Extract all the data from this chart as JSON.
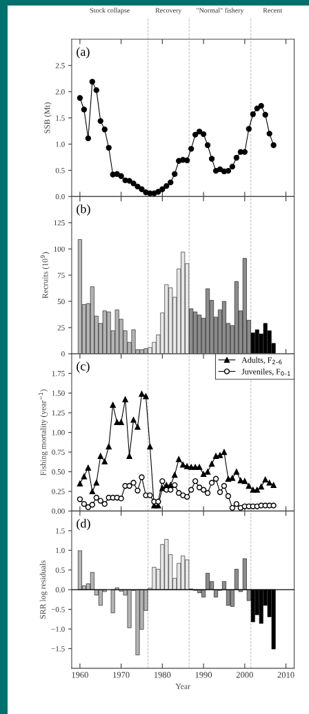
{
  "chart_data": [
    {
      "type": "line",
      "ylabel": "SSB (Mt)",
      "annotations": [
        "(a)",
        "Stock collapse",
        "Recovery",
        "\"Normal\" fishery",
        "Recent"
      ],
      "x": [
        1960,
        1961,
        1962,
        1963,
        1964,
        1965,
        1966,
        1967,
        1968,
        1969,
        1970,
        1971,
        1972,
        1973,
        1974,
        1975,
        1976,
        1977,
        1978,
        1979,
        1980,
        1981,
        1982,
        1983,
        1984,
        1985,
        1986,
        1987,
        1988,
        1989,
        1990,
        1991,
        1992,
        1993,
        1994,
        1995,
        1996,
        1997,
        1998,
        1999,
        2000,
        2001,
        2002,
        2003,
        2004,
        2005,
        2006,
        2007
      ],
      "series": [
        {
          "color": "#000000",
          "values": [
            1.88,
            1.66,
            1.11,
            2.19,
            2.03,
            1.44,
            1.28,
            0.93,
            0.42,
            0.43,
            0.39,
            0.31,
            0.3,
            0.25,
            0.19,
            0.14,
            0.08,
            0.06,
            0.06,
            0.09,
            0.14,
            0.2,
            0.27,
            0.43,
            0.68,
            0.7,
            0.69,
            0.91,
            1.18,
            1.24,
            1.19,
            0.98,
            0.72,
            0.49,
            0.52,
            0.48,
            0.49,
            0.57,
            0.74,
            0.85,
            0.85,
            1.29,
            1.57,
            1.68,
            1.73,
            1.56,
            1.2,
            0.98
          ]
        }
      ],
      "marker": "circle",
      "line_style": "solid",
      "xlim": [
        1958,
        2012
      ],
      "xticks": [
        1960,
        1970,
        1980,
        1990,
        2000,
        2010
      ],
      "ylim": [
        0,
        3.0
      ],
      "yticks": [
        {
          "value": 0,
          "label": "0.0"
        },
        {
          "value": 0.5,
          "label": "0.5"
        },
        {
          "value": 1.0,
          "label": "1.0"
        },
        {
          "value": 1.5,
          "label": "1.5"
        },
        {
          "value": 2.0,
          "label": "2.0"
        },
        {
          "value": 2.5,
          "label": "2.5"
        }
      ],
      "tick_labels": "y",
      "ref_lines": [
        {
          "axis": "x",
          "value": 1976.5,
          "color": "#bbbbbb",
          "line_style": "dashed"
        },
        {
          "axis": "x",
          "value": 1986.5,
          "color": "#bbbbbb",
          "line_style": "dashed"
        },
        {
          "axis": "x",
          "value": 2001.5,
          "color": "#bbbbbb",
          "line_style": "dashed"
        }
      ]
    },
    {
      "type": "bar",
      "ylabel": "Recruits (10$^{9}$)",
      "annotations": [
        "(b)"
      ],
      "x": [
        1960,
        1961,
        1962,
        1963,
        1964,
        1965,
        1966,
        1967,
        1968,
        1969,
        1970,
        1971,
        1972,
        1973,
        1974,
        1975,
        1976,
        1977,
        1978,
        1979,
        1980,
        1981,
        1982,
        1983,
        1984,
        1985,
        1986,
        1987,
        1988,
        1989,
        1990,
        1991,
        1992,
        1993,
        1994,
        1995,
        1996,
        1997,
        1998,
        1999,
        2000,
        2001,
        2002,
        2003,
        2004,
        2005,
        2006,
        2007
      ],
      "values": [
        109,
        47,
        48,
        64,
        36,
        29,
        41,
        40,
        22,
        42,
        33,
        22,
        11,
        23,
        4,
        4,
        5,
        6,
        11,
        18,
        39,
        66,
        63,
        54,
        81,
        97,
        86,
        43,
        40,
        37,
        34,
        62,
        51,
        35,
        42,
        50,
        29,
        27,
        69,
        41,
        91,
        32,
        20,
        23,
        19,
        29,
        22,
        10
      ],
      "colors": [
        "#b4b4b4",
        "#b4b4b4",
        "#b4b4b4",
        "#b4b4b4",
        "#b4b4b4",
        "#b4b4b4",
        "#b4b4b4",
        "#b4b4b4",
        "#b4b4b4",
        "#b4b4b4",
        "#b4b4b4",
        "#b4b4b4",
        "#b4b4b4",
        "#b4b4b4",
        "#b4b4b4",
        "#b4b4b4",
        "#b4b4b4",
        "#e6e6e6",
        "#e6e6e6",
        "#e6e6e6",
        "#e6e6e6",
        "#e6e6e6",
        "#e6e6e6",
        "#e6e6e6",
        "#e6e6e6",
        "#e6e6e6",
        "#e6e6e6",
        "#8c8c8c",
        "#8c8c8c",
        "#8c8c8c",
        "#8c8c8c",
        "#8c8c8c",
        "#8c8c8c",
        "#8c8c8c",
        "#8c8c8c",
        "#8c8c8c",
        "#8c8c8c",
        "#8c8c8c",
        "#8c8c8c",
        "#8c8c8c",
        "#8c8c8c",
        "#8c8c8c",
        "#000000",
        "#000000",
        "#000000",
        "#000000",
        "#000000",
        "#000000"
      ],
      "xlim": [
        1958,
        2012
      ],
      "xticks": [
        1960,
        1970,
        1980,
        1990,
        2000,
        2010
      ],
      "ylim": [
        0,
        150
      ],
      "yticks": [
        0,
        25,
        50,
        75,
        100,
        125
      ],
      "tick_labels": "y",
      "ref_lines": [
        {
          "axis": "x",
          "value": 1976.5,
          "color": "#bbbbbb",
          "line_style": "dashed"
        },
        {
          "axis": "x",
          "value": 1986.5,
          "color": "#bbbbbb",
          "line_style": "dashed"
        },
        {
          "axis": "x",
          "value": 2001.5,
          "color": "#bbbbbb",
          "line_style": "dashed"
        }
      ]
    },
    {
      "type": "line",
      "ylabel": "Fishing mortality (year$^{−1}$)",
      "annotations": [
        "(c)"
      ],
      "x": [
        1960,
        1961,
        1962,
        1963,
        1964,
        1965,
        1966,
        1967,
        1968,
        1969,
        1970,
        1971,
        1972,
        1973,
        1974,
        1975,
        1976,
        1977,
        1978,
        1979,
        1980,
        1981,
        1982,
        1983,
        1984,
        1985,
        1986,
        1987,
        1988,
        1989,
        1990,
        1991,
        1992,
        1993,
        1994,
        1995,
        1996,
        1997,
        1998,
        1999,
        2000,
        2001,
        2002,
        2003,
        2004,
        2005,
        2006,
        2007
      ],
      "series": [
        {
          "name": "Adults, F$_{2–6}$",
          "color": "#000000",
          "marker": "triangle",
          "values": [
            0.35,
            0.44,
            0.55,
            0.25,
            0.36,
            0.7,
            0.63,
            0.82,
            1.35,
            1.13,
            1.13,
            1.42,
            0.7,
            1.16,
            1.07,
            1.49,
            1.46,
            0.82,
            0.07,
            0.07,
            0.29,
            0.33,
            0.33,
            0.46,
            0.66,
            0.59,
            0.57,
            0.56,
            0.56,
            0.56,
            0.47,
            0.5,
            0.6,
            0.7,
            0.71,
            0.75,
            0.41,
            0.42,
            0.5,
            0.39,
            0.38,
            0.32,
            0.27,
            0.27,
            0.31,
            0.4,
            0.36,
            0.33
          ]
        },
        {
          "name": "Juveniles, F$_{0–1}$",
          "color": "#000000",
          "marker": "circle",
          "values": [
            0.15,
            0.09,
            0.05,
            0.08,
            0.17,
            0.13,
            0.09,
            0.17,
            0.17,
            0.17,
            0.16,
            0.32,
            0.32,
            0.36,
            0.26,
            0.43,
            0.2,
            0.2,
            0.12,
            0.12,
            0.38,
            0.27,
            0.27,
            0.33,
            0.23,
            0.2,
            0.18,
            0.27,
            0.38,
            0.3,
            0.27,
            0.23,
            0.36,
            0.41,
            0.24,
            0.32,
            0.19,
            0.04,
            0.09,
            0.04,
            0.06,
            0.06,
            0.06,
            0.06,
            0.07,
            0.07,
            0.07,
            0.07
          ]
        }
      ],
      "line_style": "solid",
      "legend": "top right",
      "xlim": [
        1958,
        2012
      ],
      "xticks": [
        1960,
        1970,
        1980,
        1990,
        2000,
        2010
      ],
      "ylim": [
        0,
        2.0
      ],
      "yticks": [
        {
          "value": 0,
          "label": "0.00"
        },
        {
          "value": 0.25,
          "label": "0.25"
        },
        {
          "value": 0.5,
          "label": "0.50"
        },
        {
          "value": 0.75,
          "label": "0.75"
        },
        {
          "value": 1.0,
          "label": "1.00"
        },
        {
          "value": 1.25,
          "label": "1.25"
        },
        {
          "value": 1.5,
          "label": "1.50"
        },
        {
          "value": 1.75,
          "label": "1.75"
        }
      ],
      "tick_labels": "y",
      "ref_lines": [
        {
          "axis": "x",
          "value": 1976.5,
          "color": "#bbbbbb",
          "line_style": "dashed"
        },
        {
          "axis": "x",
          "value": 1986.5,
          "color": "#bbbbbb",
          "line_style": "dashed"
        },
        {
          "axis": "x",
          "value": 2001.5,
          "color": "#bbbbbb",
          "line_style": "dashed"
        }
      ]
    },
    {
      "type": "bar",
      "ylabel": "SRR log residuals",
      "xlabel": "Year",
      "annotations": [
        "(d)"
      ],
      "x": [
        1960,
        1961,
        1962,
        1963,
        1964,
        1965,
        1966,
        1967,
        1968,
        1969,
        1970,
        1971,
        1972,
        1973,
        1974,
        1975,
        1976,
        1977,
        1978,
        1979,
        1980,
        1981,
        1982,
        1983,
        1984,
        1985,
        1986,
        1987,
        1988,
        1989,
        1990,
        1991,
        1992,
        1993,
        1994,
        1995,
        1996,
        1997,
        1998,
        1999,
        2000,
        2001,
        2002,
        2003,
        2004,
        2005,
        2006,
        2007
      ],
      "values": [
        0.99,
        0.1,
        0.15,
        0.44,
        -0.14,
        -0.4,
        -0.05,
        null,
        -0.59,
        0.05,
        -0.04,
        -0.14,
        -0.97,
        -0.02,
        -1.66,
        -1.01,
        -0.53,
        0.04,
        0.57,
        0.52,
        1.15,
        1.28,
        0.89,
        0.29,
        0.67,
        0.86,
        0.76,
        0.02,
        -0.02,
        -0.08,
        -0.19,
        0.42,
        0.21,
        -0.19,
        -0.02,
        0.21,
        -0.4,
        -0.43,
        0.52,
        -0.05,
        0.79,
        -0.28,
        -0.82,
        -0.64,
        -0.86,
        -0.4,
        -0.69,
        -1.51
      ],
      "colors": [
        "#b4b4b4",
        "#b4b4b4",
        "#b4b4b4",
        "#b4b4b4",
        "#b4b4b4",
        "#b4b4b4",
        "#b4b4b4",
        "#b4b4b4",
        "#b4b4b4",
        "#b4b4b4",
        "#b4b4b4",
        "#b4b4b4",
        "#b4b4b4",
        "#b4b4b4",
        "#b4b4b4",
        "#b4b4b4",
        "#b4b4b4",
        "#e6e6e6",
        "#e6e6e6",
        "#e6e6e6",
        "#e6e6e6",
        "#e6e6e6",
        "#e6e6e6",
        "#e6e6e6",
        "#e6e6e6",
        "#e6e6e6",
        "#e6e6e6",
        "#8c8c8c",
        "#8c8c8c",
        "#8c8c8c",
        "#8c8c8c",
        "#8c8c8c",
        "#8c8c8c",
        "#8c8c8c",
        "#8c8c8c",
        "#8c8c8c",
        "#8c8c8c",
        "#8c8c8c",
        "#8c8c8c",
        "#8c8c8c",
        "#8c8c8c",
        "#8c8c8c",
        "#000000",
        "#000000",
        "#000000",
        "#000000",
        "#000000",
        "#000000"
      ],
      "xlim": [
        1958,
        2012
      ],
      "xticks": [
        1960,
        1970,
        1980,
        1990,
        2000,
        2010
      ],
      "ylim": [
        -2.0,
        2.0
      ],
      "yticks": [
        {
          "value": -1.5,
          "label": "−1.5"
        },
        {
          "value": -1.0,
          "label": "−1.0"
        },
        {
          "value": -0.5,
          "label": "−0.5"
        },
        {
          "value": 0,
          "label": "0.0"
        },
        {
          "value": 0.5,
          "label": "0.5"
        },
        {
          "value": 1.0,
          "label": "1.0"
        },
        {
          "value": 1.5,
          "label": "1.5"
        }
      ],
      "ref_lines": [
        {
          "axis": "y",
          "value": 0,
          "color": "#000000",
          "line_style": "solid"
        },
        {
          "axis": "x",
          "value": 1976.5,
          "color": "#bbbbbb",
          "line_style": "dashed"
        },
        {
          "axis": "x",
          "value": 1986.5,
          "color": "#bbbbbb",
          "line_style": "dashed"
        },
        {
          "axis": "x",
          "value": 2001.5,
          "color": "#bbbbbb",
          "line_style": "dashed"
        }
      ]
    }
  ]
}
